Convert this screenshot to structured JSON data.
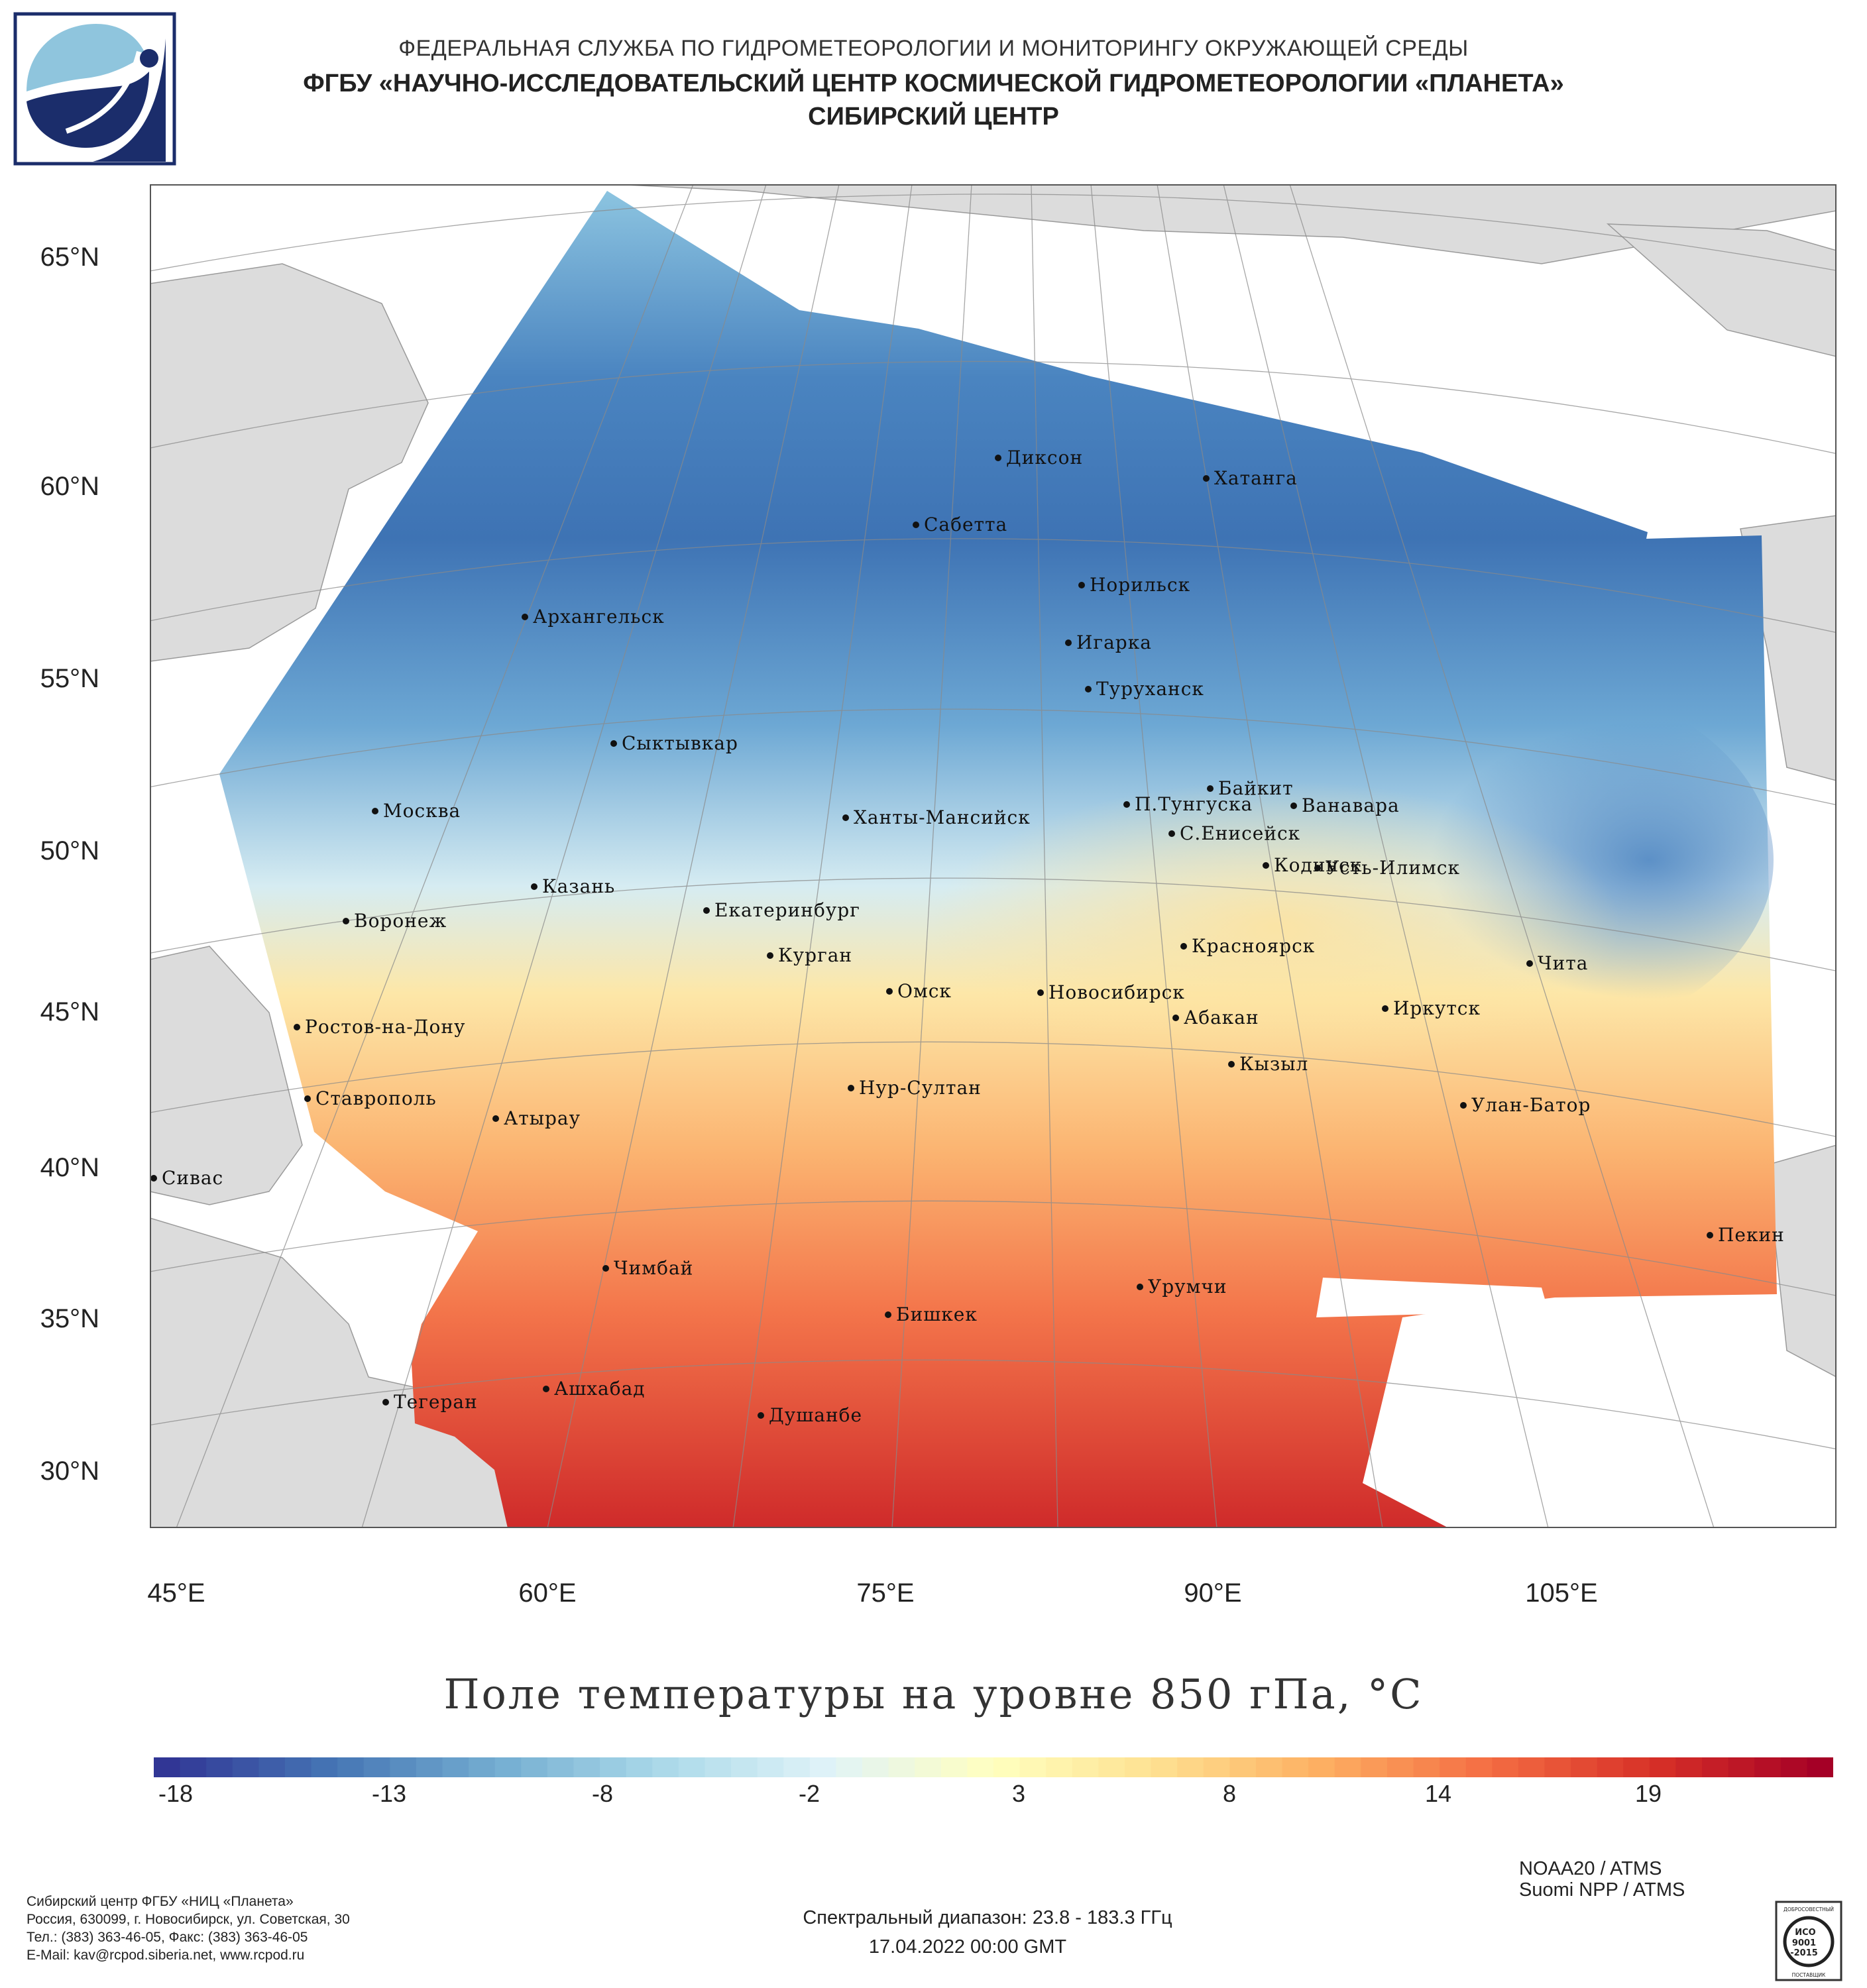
{
  "header": {
    "line1": "ФЕДЕРАЛЬНАЯ СЛУЖБА ПО ГИДРОМЕТЕОРОЛОГИИ И МОНИТОРИНГУ ОКРУЖАЮЩЕЙ СРЕДЫ",
    "line2": "ФГБУ «НАУЧНО-ИССЛЕДОВАТЕЛЬСКИЙ ЦЕНТР КОСМИЧЕСКОЙ ГИДРОМЕТЕОРОЛОГИИ «ПЛАНЕТА»",
    "line3": "СИБИРСКИЙ ЦЕНТР"
  },
  "logo": {
    "name": "planeta-logo",
    "colors": [
      "#1b2d6b",
      "#8fc5dd"
    ]
  },
  "map": {
    "lat_labels": [
      "65°N",
      "60°N",
      "55°N",
      "50°N",
      "45°N",
      "40°N",
      "35°N",
      "30°N"
    ],
    "lon_labels": [
      "45°E",
      "60°E",
      "75°E",
      "90°E",
      "105°E"
    ],
    "land_color": "#dcdcdc",
    "water_color": "#ffffff",
    "cities": [
      "Диксон",
      "Хатанга",
      "Сабетта",
      "Норильск",
      "Архангельск",
      "Игарка",
      "Туруханск",
      "Сыктывкар",
      "Байкит",
      "П.Тунгуска",
      "Ванавара",
      "Москва",
      "Ханты-Мансийск",
      "С.Енисейск",
      "Кодинск",
      "Усть-Илимск",
      "Казань",
      "Екатеринбург",
      "Воронеж",
      "Красноярск",
      "Курган",
      "Чита",
      "Омск",
      "Новосибирск",
      "Иркутск",
      "Абакан",
      "Ростов-на-Дону",
      "Кызыл",
      "Нур-Султан",
      "Ставрополь",
      "Улан-Батор",
      "Атырау",
      "Сивас",
      "Пекин",
      "Чимбай",
      "Урумчи",
      "Бишкек",
      "Ашхабад",
      "Тегеран",
      "Душанбе"
    ]
  },
  "title": "Поле температуры на уровне 850 гПа, °C",
  "colorbar": {
    "ticks": [
      "-18",
      "-13",
      "-8",
      "-2",
      "3",
      "8",
      "14",
      "19"
    ],
    "colors": [
      "#313695",
      "#4575b4",
      "#74add1",
      "#abd9e9",
      "#e0f3f8",
      "#ffffbf",
      "#fee090",
      "#fdae61",
      "#f46d43",
      "#d73027",
      "#a50026"
    ]
  },
  "footer": {
    "org": [
      "Сибирский центр ФГБУ «НИЦ «Планета»",
      "Россия, 630099, г. Новосибирск, ул. Советская, 30",
      "Тел.: (383) 363-46-05, Факс: (383) 363-46-05",
      "E-Mail: kav@rcpod.siberia.net, www.rcpod.ru"
    ],
    "spectral": "Спектральный диапазон: 23.8 - 183.3 ГГц",
    "datetime": "17.04.2022 00:00 GMT",
    "satellite1": "NOAA20 / ATMS",
    "satellite2": "Suomi NPP / ATMS",
    "cert_top": "ДОБРОСОВЕСТНЫЙ",
    "cert_iso": "ИСО",
    "cert_num1": "9001",
    "cert_num2": "-2015",
    "cert_bottom": "ПОСТАВЩИК"
  }
}
